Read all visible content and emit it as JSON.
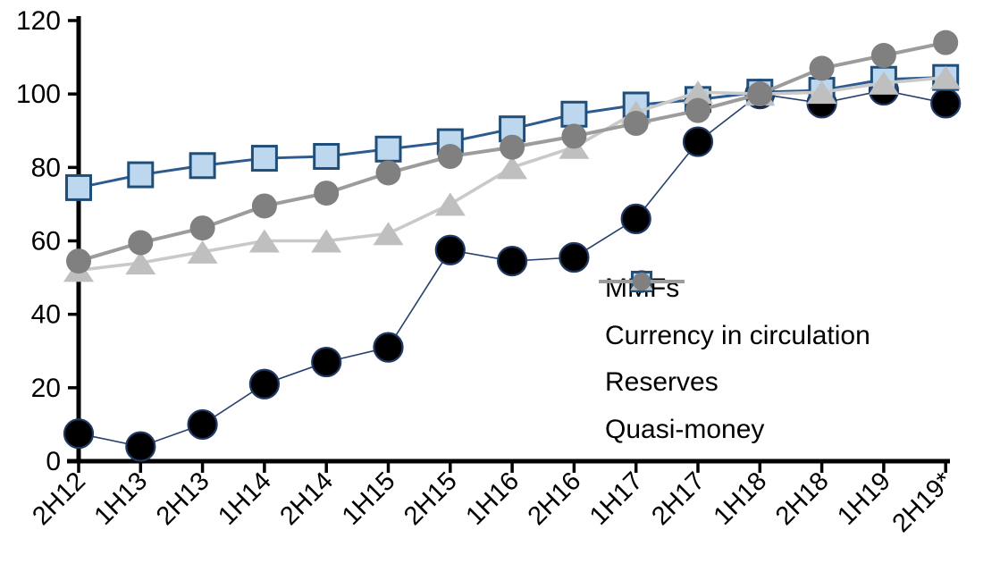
{
  "chart_data": {
    "type": "line",
    "title": "",
    "xlabel": "",
    "ylabel": "",
    "grid": false,
    "ylim": [
      0,
      120
    ],
    "yticks": [
      0,
      20,
      40,
      60,
      80,
      100,
      120
    ],
    "legend_position": "inside-right-middle",
    "categories": [
      "2H12",
      "1H13",
      "2H13",
      "1H14",
      "2H14",
      "1H15",
      "2H15",
      "1H16",
      "2H16",
      "1H17",
      "2H17",
      "1H18",
      "2H18",
      "1H19",
      "2H19*"
    ],
    "series": [
      {
        "name": "MMFs",
        "marker": "circle",
        "line_color": "#27406B",
        "marker_color": "#000000",
        "marker_edge_color": "#1F3864",
        "values": [
          7.5,
          4,
          10,
          21,
          27,
          31,
          57.5,
          54.5,
          55.5,
          66,
          87,
          100,
          97.5,
          101,
          97.5
        ]
      },
      {
        "name": "Currency in circulation",
        "marker": "square",
        "line_color": "#2E5B8F",
        "marker_color": "#BDD7EE",
        "marker_edge_color": "#1F4E79",
        "values": [
          74.5,
          78,
          80.5,
          82.5,
          83,
          85,
          87,
          90.5,
          94.5,
          97,
          98.5,
          100.5,
          101,
          104,
          104.5
        ]
      },
      {
        "name": "Reserves",
        "marker": "triangle",
        "line_color": "#C9C9C9",
        "marker_color": "#BFBFBF",
        "marker_edge_color": "#BFBFBF",
        "values": [
          52,
          54,
          57,
          60,
          60,
          62,
          70,
          80,
          85.5,
          95,
          100.5,
          100,
          100.5,
          103,
          104.5
        ]
      },
      {
        "name": "Quasi-money",
        "marker": "circle",
        "line_color": "#9C9C9C",
        "marker_color": "#808080",
        "marker_edge_color": "#808080",
        "values": [
          54.5,
          59.5,
          63.5,
          69.5,
          73,
          78.5,
          83,
          85.5,
          88.5,
          92,
          95.5,
          100,
          107,
          110.5,
          114
        ]
      }
    ],
    "axis_color": "#000000",
    "tick_label_color": "#000000"
  }
}
